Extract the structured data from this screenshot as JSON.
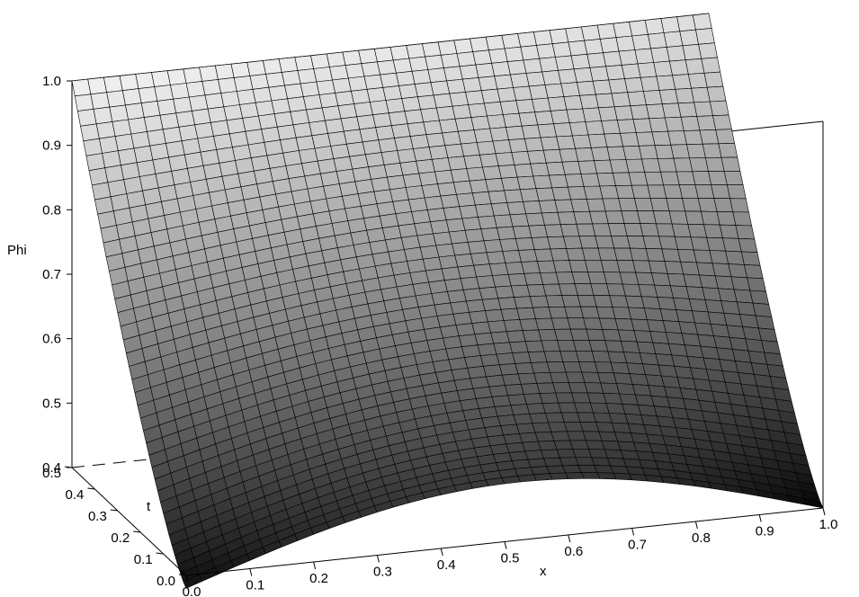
{
  "chart_data": {
    "type": "surface",
    "title": "",
    "xlabel": "x",
    "ylabel": "t",
    "zlabel": "Phi",
    "xlim": [
      0.0,
      1.0
    ],
    "ylim": [
      0.0,
      0.5
    ],
    "zlim": [
      0.4,
      1.0
    ],
    "x_ticks": [
      "0.0",
      "0.1",
      "0.2",
      "0.3",
      "0.4",
      "0.5",
      "0.6",
      "0.7",
      "0.8",
      "0.9",
      "1.0"
    ],
    "y_ticks": [
      "0.0",
      "0.1",
      "0.2",
      "0.3",
      "0.4",
      "0.5"
    ],
    "z_ticks": [
      "0.4",
      "0.5",
      "0.6",
      "0.7",
      "0.8",
      "0.9",
      "1.0"
    ],
    "grid_x_count": 41,
    "grid_t_count": 41,
    "shading": "grayscale by height",
    "sample_values": [
      {
        "x": 0.0,
        "t": 0.0,
        "phi": 0.38
      },
      {
        "x": 0.5,
        "t": 0.0,
        "phi": 0.48
      },
      {
        "x": 1.0,
        "t": 0.0,
        "phi": 0.4
      },
      {
        "x": 0.0,
        "t": 0.5,
        "phi": 1.0
      },
      {
        "x": 1.0,
        "t": 0.5,
        "phi": 1.0
      },
      {
        "x": 0.5,
        "t": 0.5,
        "phi": 1.0
      }
    ]
  }
}
